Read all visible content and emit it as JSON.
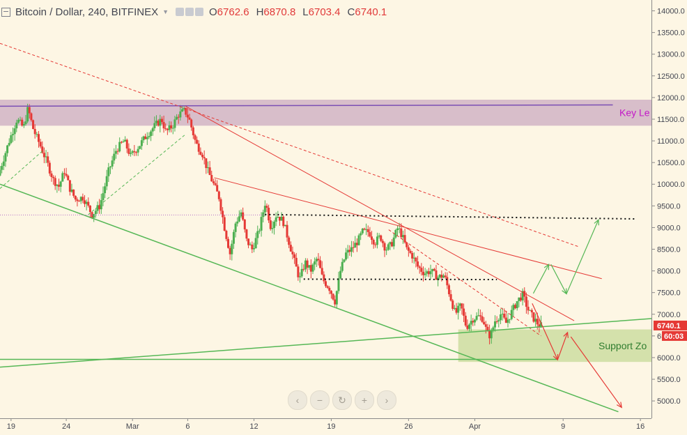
{
  "header": {
    "title": "Bitcoin / Dollar, 240, BITFINEX",
    "ohlc": [
      {
        "k": "O",
        "v": "6762.6"
      },
      {
        "k": "H",
        "v": "6870.8"
      },
      {
        "k": "L",
        "v": "6703.4"
      },
      {
        "k": "C",
        "v": "6740.1"
      }
    ]
  },
  "navbar": {
    "buttons": [
      "‹",
      "−",
      "↻",
      "+",
      "›"
    ]
  },
  "colors": {
    "background": "#fdf6e4",
    "up": "#4caf50",
    "down": "#e53935",
    "key_zone": "#d4b8c6",
    "support_zone": "#cfdfa4",
    "trend_red": "#e53935",
    "trend_green": "#55b755",
    "key_line": "#7b4fb4",
    "key_label": "#c318c8",
    "support_label": "#2f7d2f",
    "price_label_bg": "#e53935",
    "timer_bg": "#e53935"
  },
  "chart_data": {
    "type": "candlestick",
    "title": "Bitcoin / Dollar, 240, BITFINEX",
    "ylim": [
      4600,
      14250
    ],
    "y_ticks": [
      "5000.0",
      "5500.0",
      "6000.0",
      "6500.0",
      "7000.0",
      "7500.0",
      "8000.0",
      "8500.0",
      "9000.0",
      "9500.0",
      "10000.0",
      "10500.0",
      "11000.0",
      "11500.0",
      "12000.0",
      "12500.0",
      "13000.0",
      "13500.0",
      "14000.0"
    ],
    "x_ticks": [
      {
        "label": "19",
        "day": -11
      },
      {
        "label": "24",
        "day": -6
      },
      {
        "label": "Mar",
        "day": 0
      },
      {
        "label": "6",
        "day": 5
      },
      {
        "label": "12",
        "day": 11
      },
      {
        "label": "19",
        "day": 18
      },
      {
        "label": "26",
        "day": 25
      },
      {
        "label": "Apr",
        "day": 31
      },
      {
        "label": "9",
        "day": 39
      },
      {
        "label": "16",
        "day": 46
      }
    ],
    "x_domain_days": [
      -12,
      47
    ],
    "last_price": "6740.1",
    "last_price_value": 6740.1,
    "countdown": "60:03",
    "anchors": [
      [
        -12,
        10200
      ],
      [
        -11.5,
        10600
      ],
      [
        -11,
        11000
      ],
      [
        -10.3,
        11500
      ],
      [
        -9.7,
        11300
      ],
      [
        -9.3,
        11750
      ],
      [
        -8.8,
        11250
      ],
      [
        -8.2,
        10900
      ],
      [
        -7.5,
        10450
      ],
      [
        -7,
        10100
      ],
      [
        -6.5,
        9950
      ],
      [
        -6,
        10300
      ],
      [
        -5.5,
        9900
      ],
      [
        -5,
        9650
      ],
      [
        -4.3,
        9700
      ],
      [
        -3.5,
        9300
      ],
      [
        -2.8,
        9500
      ],
      [
        -2,
        10300
      ],
      [
        -1.3,
        10800
      ],
      [
        -0.6,
        11000
      ],
      [
        0,
        10650
      ],
      [
        0.8,
        10900
      ],
      [
        1.5,
        11150
      ],
      [
        2.2,
        11350
      ],
      [
        2.8,
        11500
      ],
      [
        3.2,
        11200
      ],
      [
        3.8,
        11350
      ],
      [
        4.3,
        11600
      ],
      [
        4.9,
        11700
      ],
      [
        5.3,
        11500
      ],
      [
        5.9,
        10950
      ],
      [
        6.5,
        10700
      ],
      [
        7,
        10300
      ],
      [
        7.5,
        10000
      ],
      [
        8,
        9700
      ],
      [
        8.5,
        9000
      ],
      [
        9,
        8400
      ],
      [
        9.5,
        9100
      ],
      [
        10,
        9350
      ],
      [
        10.5,
        8700
      ],
      [
        11,
        8500
      ],
      [
        11.6,
        8900
      ],
      [
        12.2,
        9600
      ],
      [
        12.7,
        9000
      ],
      [
        13.2,
        9300
      ],
      [
        13.8,
        9150
      ],
      [
        14.3,
        8700
      ],
      [
        14.8,
        8250
      ],
      [
        15.3,
        7800
      ],
      [
        15.8,
        8200
      ],
      [
        16.3,
        8000
      ],
      [
        16.9,
        8300
      ],
      [
        17.4,
        7800
      ],
      [
        18,
        7600
      ],
      [
        18.5,
        7300
      ],
      [
        19,
        8000
      ],
      [
        19.5,
        8400
      ],
      [
        20,
        8500
      ],
      [
        20.6,
        8700
      ],
      [
        21,
        8900
      ],
      [
        21.6,
        8900
      ],
      [
        22.1,
        8650
      ],
      [
        22.6,
        8800
      ],
      [
        23.1,
        8500
      ],
      [
        23.6,
        8600
      ],
      [
        24.2,
        9000
      ],
      [
        24.6,
        8800
      ],
      [
        25,
        8500
      ],
      [
        25.5,
        8350
      ],
      [
        26,
        8100
      ],
      [
        26.6,
        7950
      ],
      [
        27.2,
        8000
      ],
      [
        27.8,
        7850
      ],
      [
        28.4,
        7900
      ],
      [
        28.9,
        7450
      ],
      [
        29.4,
        7000
      ],
      [
        29.9,
        7200
      ],
      [
        30.4,
        6700
      ],
      [
        31,
        6900
      ],
      [
        31.5,
        6950
      ],
      [
        31.9,
        6900
      ],
      [
        32.3,
        6550
      ],
      [
        32.6,
        6500
      ],
      [
        33,
        6850
      ],
      [
        33.5,
        7000
      ],
      [
        34,
        6800
      ],
      [
        34.5,
        7050
      ],
      [
        35,
        7300
      ],
      [
        35.5,
        7450
      ],
      [
        36,
        7100
      ],
      [
        36.5,
        6900
      ],
      [
        37,
        6740
      ]
    ],
    "zones": [
      {
        "name": "key-level-zone",
        "label": "Key Le",
        "y0": 11350,
        "y1": 11950,
        "x0": -12,
        "x1": 47
      },
      {
        "name": "support-zone",
        "label": "Support Zo",
        "y0": 5900,
        "y1": 6650,
        "x0": 29.5,
        "x1": 47
      }
    ],
    "lines": [
      {
        "name": "key-level-line",
        "color": "#7b4fb4",
        "width": 1.5,
        "dash": "",
        "x1": -12,
        "y1": 11800,
        "x2": 43.5,
        "y2": 11830
      },
      {
        "name": "upper-dashed-downtrend",
        "color": "#e53935",
        "width": 1,
        "dash": "4,3",
        "x1": -12,
        "y1": 13250,
        "x2": 40.5,
        "y2": 8550
      },
      {
        "name": "steep-downtrend",
        "color": "#e53935",
        "width": 1,
        "dash": "",
        "x1": 4.8,
        "y1": 11800,
        "x2": 40,
        "y2": 6850
      },
      {
        "name": "mid-downtrend",
        "color": "#e53935",
        "width": 1,
        "dash": "",
        "x1": 7.4,
        "y1": 10150,
        "x2": 42.5,
        "y2": 7820
      },
      {
        "name": "short-dashed-downtrend",
        "color": "#e53935",
        "width": 1,
        "dash": "4,3",
        "x1": 23.2,
        "y1": 8950,
        "x2": 37,
        "y2": 6500
      },
      {
        "name": "resistance-dotted-9200",
        "color": "#111111",
        "width": 2,
        "dash": "2,4",
        "x1": 12,
        "y1": 9300,
        "x2": 45.5,
        "y2": 9200
      },
      {
        "name": "support-dotted-7800",
        "color": "#111111",
        "width": 2,
        "dash": "2,4",
        "x1": 15.5,
        "y1": 7810,
        "x2": 33,
        "y2": 7800
      },
      {
        "name": "lower-green-downtrend",
        "color": "#55b755",
        "width": 1.5,
        "dash": "",
        "x1": -12,
        "y1": 10000,
        "x2": 44,
        "y2": 4750
      },
      {
        "name": "rising-green-support",
        "color": "#55b755",
        "width": 1.5,
        "dash": "",
        "x1": -12,
        "y1": 5780,
        "x2": 47,
        "y2": 6900
      },
      {
        "name": "horizontal-green-6000",
        "color": "#55b755",
        "width": 1.5,
        "dash": "",
        "x1": -12,
        "y1": 5960,
        "x2": 38.5,
        "y2": 5960
      },
      {
        "name": "green-dashed-channel-1",
        "color": "#55b755",
        "width": 1,
        "dash": "4,3",
        "x1": -12,
        "y1": 9900,
        "x2": -8,
        "y2": 10800
      },
      {
        "name": "green-dashed-channel-2",
        "color": "#55b755",
        "width": 1,
        "dash": "4,3",
        "x1": -4,
        "y1": 9300,
        "x2": 4.8,
        "y2": 11150
      },
      {
        "name": "pink-dotted-level",
        "color": "#b46cc8",
        "width": 1,
        "dash": "1,2",
        "x1": -12,
        "y1": 9290,
        "x2": 12,
        "y2": 9290
      }
    ],
    "arrows": [
      {
        "name": "projection-arrow-down-1",
        "color": "#e53935",
        "points": [
          [
            36.2,
            7250
          ],
          [
            38.5,
            5950
          ]
        ]
      },
      {
        "name": "projection-arrow-up-1",
        "color": "#e53935",
        "points": [
          [
            38.5,
            5950
          ],
          [
            39.4,
            6580
          ]
        ]
      },
      {
        "name": "projection-arrow-down-2",
        "color": "#e53935",
        "points": [
          [
            39.7,
            6480
          ],
          [
            44.3,
            4850
          ]
        ]
      },
      {
        "name": "projection-arrow-green-1",
        "color": "#55b755",
        "points": [
          [
            36.3,
            7480
          ],
          [
            37.7,
            8150
          ]
        ]
      },
      {
        "name": "projection-arrow-green-2",
        "color": "#55b755",
        "points": [
          [
            37.9,
            8150
          ],
          [
            39.3,
            7470
          ]
        ]
      },
      {
        "name": "projection-arrow-green-3",
        "color": "#55b755",
        "points": [
          [
            39.3,
            7470
          ],
          [
            42.2,
            9180
          ]
        ]
      }
    ]
  }
}
